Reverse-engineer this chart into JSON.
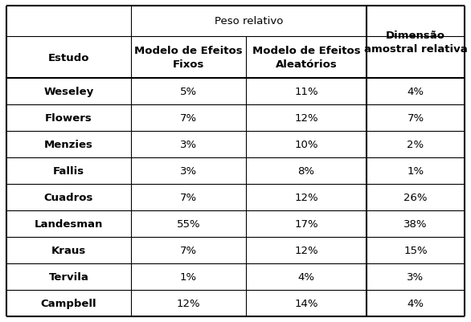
{
  "rows": [
    [
      "Weseley",
      "5%",
      "11%",
      "4%"
    ],
    [
      "Flowers",
      "7%",
      "12%",
      "7%"
    ],
    [
      "Menzies",
      "3%",
      "10%",
      "2%"
    ],
    [
      "Fallis",
      "3%",
      "8%",
      "1%"
    ],
    [
      "Cuadros",
      "7%",
      "12%",
      "26%"
    ],
    [
      "Landesman",
      "55%",
      "17%",
      "38%"
    ],
    [
      "Kraus",
      "7%",
      "12%",
      "15%"
    ],
    [
      "Tervila",
      "1%",
      "4%",
      "3%"
    ],
    [
      "Campbell",
      "12%",
      "14%",
      "4%"
    ]
  ],
  "border_color": "#000000",
  "text_color": "#000000",
  "bg_color": "#ffffff",
  "font_size": 9.5,
  "header_font_size": 9.5
}
